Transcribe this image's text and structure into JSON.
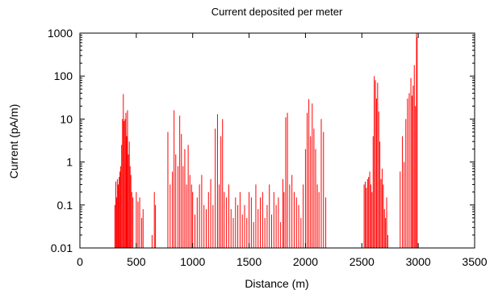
{
  "chart_data": {
    "type": "bar",
    "title": "Current deposited per meter",
    "xlabel": "Distance (m)",
    "ylabel": "Current (pA/m)",
    "xlim": [
      0,
      3500
    ],
    "ylim": [
      0.01,
      1000
    ],
    "y_scale": "log",
    "grid": false,
    "legend": "none",
    "bar_color": "#ff0000",
    "x_ticks": [
      0,
      500,
      1000,
      1500,
      2000,
      2500,
      3000,
      3500
    ],
    "x_tick_labels": [
      "0",
      "500",
      "1000",
      "1500",
      "2000",
      "2500",
      "3000",
      "3500"
    ],
    "y_ticks": [
      0.01,
      0.1,
      1,
      10,
      100,
      1000
    ],
    "y_tick_labels": [
      "0.01",
      "0.1",
      "1",
      "10",
      "100",
      "1000"
    ],
    "series": [
      {
        "x": [
          310,
          318,
          325,
          332,
          340,
          348,
          355,
          362,
          370,
          378,
          385,
          392,
          400,
          408,
          415,
          422,
          430,
          438,
          445,
          452,
          460,
          470,
          500,
          515,
          530,
          548,
          560,
          640,
          660,
          670,
          780,
          800,
          820,
          835,
          850,
          870,
          885,
          900,
          915,
          930,
          945,
          960,
          975,
          990,
          1000,
          1020,
          1040,
          1060,
          1080,
          1100,
          1120,
          1140,
          1160,
          1180,
          1200,
          1220,
          1235,
          1250,
          1265,
          1280,
          1300,
          1320,
          1340,
          1360,
          1380,
          1400,
          1420,
          1440,
          1460,
          1480,
          1500,
          1520,
          1540,
          1560,
          1580,
          1600,
          1620,
          1640,
          1660,
          1680,
          1700,
          1720,
          1740,
          1760,
          1780,
          1800,
          1810,
          1825,
          1840,
          1860,
          1880,
          1900,
          1920,
          1940,
          1960,
          1980,
          2000,
          2015,
          2030,
          2045,
          2060,
          2075,
          2090,
          2105,
          2120,
          2140,
          2160,
          2180,
          2520,
          2530,
          2540,
          2550,
          2560,
          2570,
          2580,
          2590,
          2600,
          2610,
          2620,
          2630,
          2640,
          2650,
          2660,
          2670,
          2680,
          2690,
          2700,
          2710,
          2720,
          2730,
          2840,
          2860,
          2875,
          2890,
          2905,
          2920,
          2935,
          2945,
          2955,
          2965,
          2975,
          2985,
          2990
        ],
        "values": [
          0.1,
          0.35,
          0.15,
          0.4,
          0.3,
          0.45,
          0.6,
          0.8,
          2.5,
          10,
          38,
          9,
          10,
          14,
          4,
          16,
          1.5,
          3,
          0.8,
          0.5,
          0.2,
          0.15,
          0.2,
          0.12,
          0.15,
          0.05,
          0.08,
          0.02,
          0.2,
          0.1,
          5,
          0.3,
          0.6,
          16,
          1.5,
          0.8,
          12,
          4.5,
          0.8,
          2,
          0.3,
          2.5,
          0.5,
          0.3,
          0.2,
          0.06,
          0.15,
          0.3,
          0.5,
          0.1,
          0.08,
          0.2,
          0.4,
          0.1,
          6,
          13,
          0.3,
          4,
          10,
          0.2,
          0.15,
          0.3,
          0.08,
          0.05,
          0.15,
          0.1,
          0.2,
          0.06,
          0.1,
          0.05,
          0.2,
          0.15,
          0.04,
          0.3,
          0.08,
          0.15,
          0.2,
          0.05,
          0.1,
          0.3,
          0.06,
          0.2,
          0.1,
          0.15,
          0.04,
          0.4,
          0.2,
          11,
          14,
          0.3,
          0.5,
          0.2,
          0.15,
          0.1,
          0.05,
          0.3,
          2,
          14,
          29,
          4,
          23,
          6,
          2,
          0.3,
          0.2,
          10,
          5,
          0.15,
          0.3,
          0.35,
          0.25,
          0.4,
          0.45,
          0.6,
          0.3,
          0.2,
          4,
          100,
          80,
          30,
          70,
          15,
          3,
          0.4,
          0.7,
          0.3,
          0.08,
          0.05,
          0.15,
          0.02,
          0.6,
          4,
          1,
          10,
          30,
          40,
          90,
          35,
          60,
          180,
          20,
          1000,
          800
        ]
      }
    ]
  }
}
